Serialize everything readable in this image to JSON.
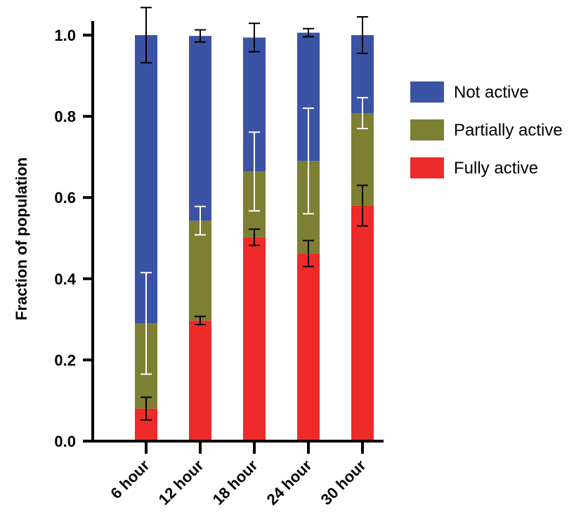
{
  "chart_data": {
    "type": "bar",
    "stacked": true,
    "ylabel": "Fraction of population",
    "xlabel": "",
    "ylim": [
      0,
      1.0
    ],
    "yticks": [
      "0.0",
      "0.2",
      "0.4",
      "0.6",
      "0.8",
      "1.0"
    ],
    "categories": [
      "6 hour",
      "12 hour",
      "18 hour",
      "24 hour",
      "30 hour"
    ],
    "series": [
      {
        "name": "Fully active",
        "color": "#ee2a2a",
        "error_color": "#000000",
        "values": [
          0.08,
          0.297,
          0.502,
          0.462,
          0.58
        ],
        "errors": [
          0.028,
          0.01,
          0.02,
          0.032,
          0.05
        ]
      },
      {
        "name": "Partially active",
        "color": "#7d7f32",
        "error_color": "#ffffff",
        "values": [
          0.21,
          0.246,
          0.162,
          0.228,
          0.228
        ],
        "errors": [
          0.125,
          0.035,
          0.097,
          0.13,
          0.038
        ]
      },
      {
        "name": "Not active",
        "color": "#3a53a4",
        "error_color": "#000000",
        "values": [
          0.71,
          0.455,
          0.33,
          0.316,
          0.192
        ],
        "errors": [
          0.068,
          0.015,
          0.035,
          0.01,
          0.045
        ]
      }
    ],
    "legend": {
      "position": "right",
      "order": [
        "Not active",
        "Partially active",
        "Fully active"
      ]
    },
    "grid": false
  }
}
